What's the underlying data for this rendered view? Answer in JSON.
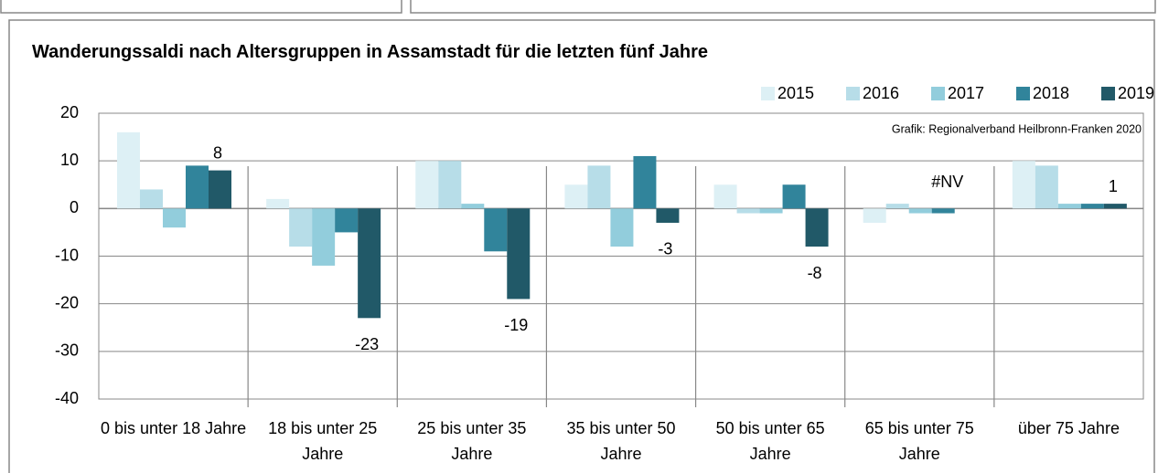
{
  "chart_data": {
    "type": "bar",
    "title": "Wanderungssaldi nach Altersgruppen in Assamstadt für die letzten fünf Jahre",
    "annotation": "Grafik: Regionalverband Heilbronn-Franken 2020",
    "categories": [
      "0 bis unter 18 Jahre",
      "18 bis unter 25 Jahre",
      "25 bis unter 35 Jahre",
      "35 bis unter 50 Jahre",
      "50 bis unter 65 Jahre",
      "65 bis unter 75 Jahre",
      "über 75 Jahre"
    ],
    "series": [
      {
        "name": "2015",
        "color": "#ddf0f5",
        "values": [
          16,
          2,
          10,
          5,
          5,
          -3,
          10
        ]
      },
      {
        "name": "2016",
        "color": "#b7dde8",
        "values": [
          4,
          -8,
          10,
          9,
          -1,
          1,
          9
        ]
      },
      {
        "name": "2017",
        "color": "#92cddc",
        "values": [
          -4,
          -12,
          1,
          -8,
          -1,
          -1,
          1
        ]
      },
      {
        "name": "2018",
        "color": "#31849b",
        "values": [
          9,
          -5,
          -9,
          11,
          5,
          -1,
          1
        ]
      },
      {
        "name": "2019",
        "color": "#215968",
        "values": [
          8,
          -23,
          -19,
          -3,
          -8,
          null,
          1
        ],
        "value_labels": [
          "8",
          "-23",
          "-19",
          "-3",
          "-8",
          "#NV",
          "1"
        ]
      }
    ],
    "ylim": [
      -40,
      20
    ],
    "yticks": [
      -40,
      -30,
      -20,
      -10,
      0,
      10,
      20
    ],
    "grid": true,
    "legend": "top-right"
  }
}
